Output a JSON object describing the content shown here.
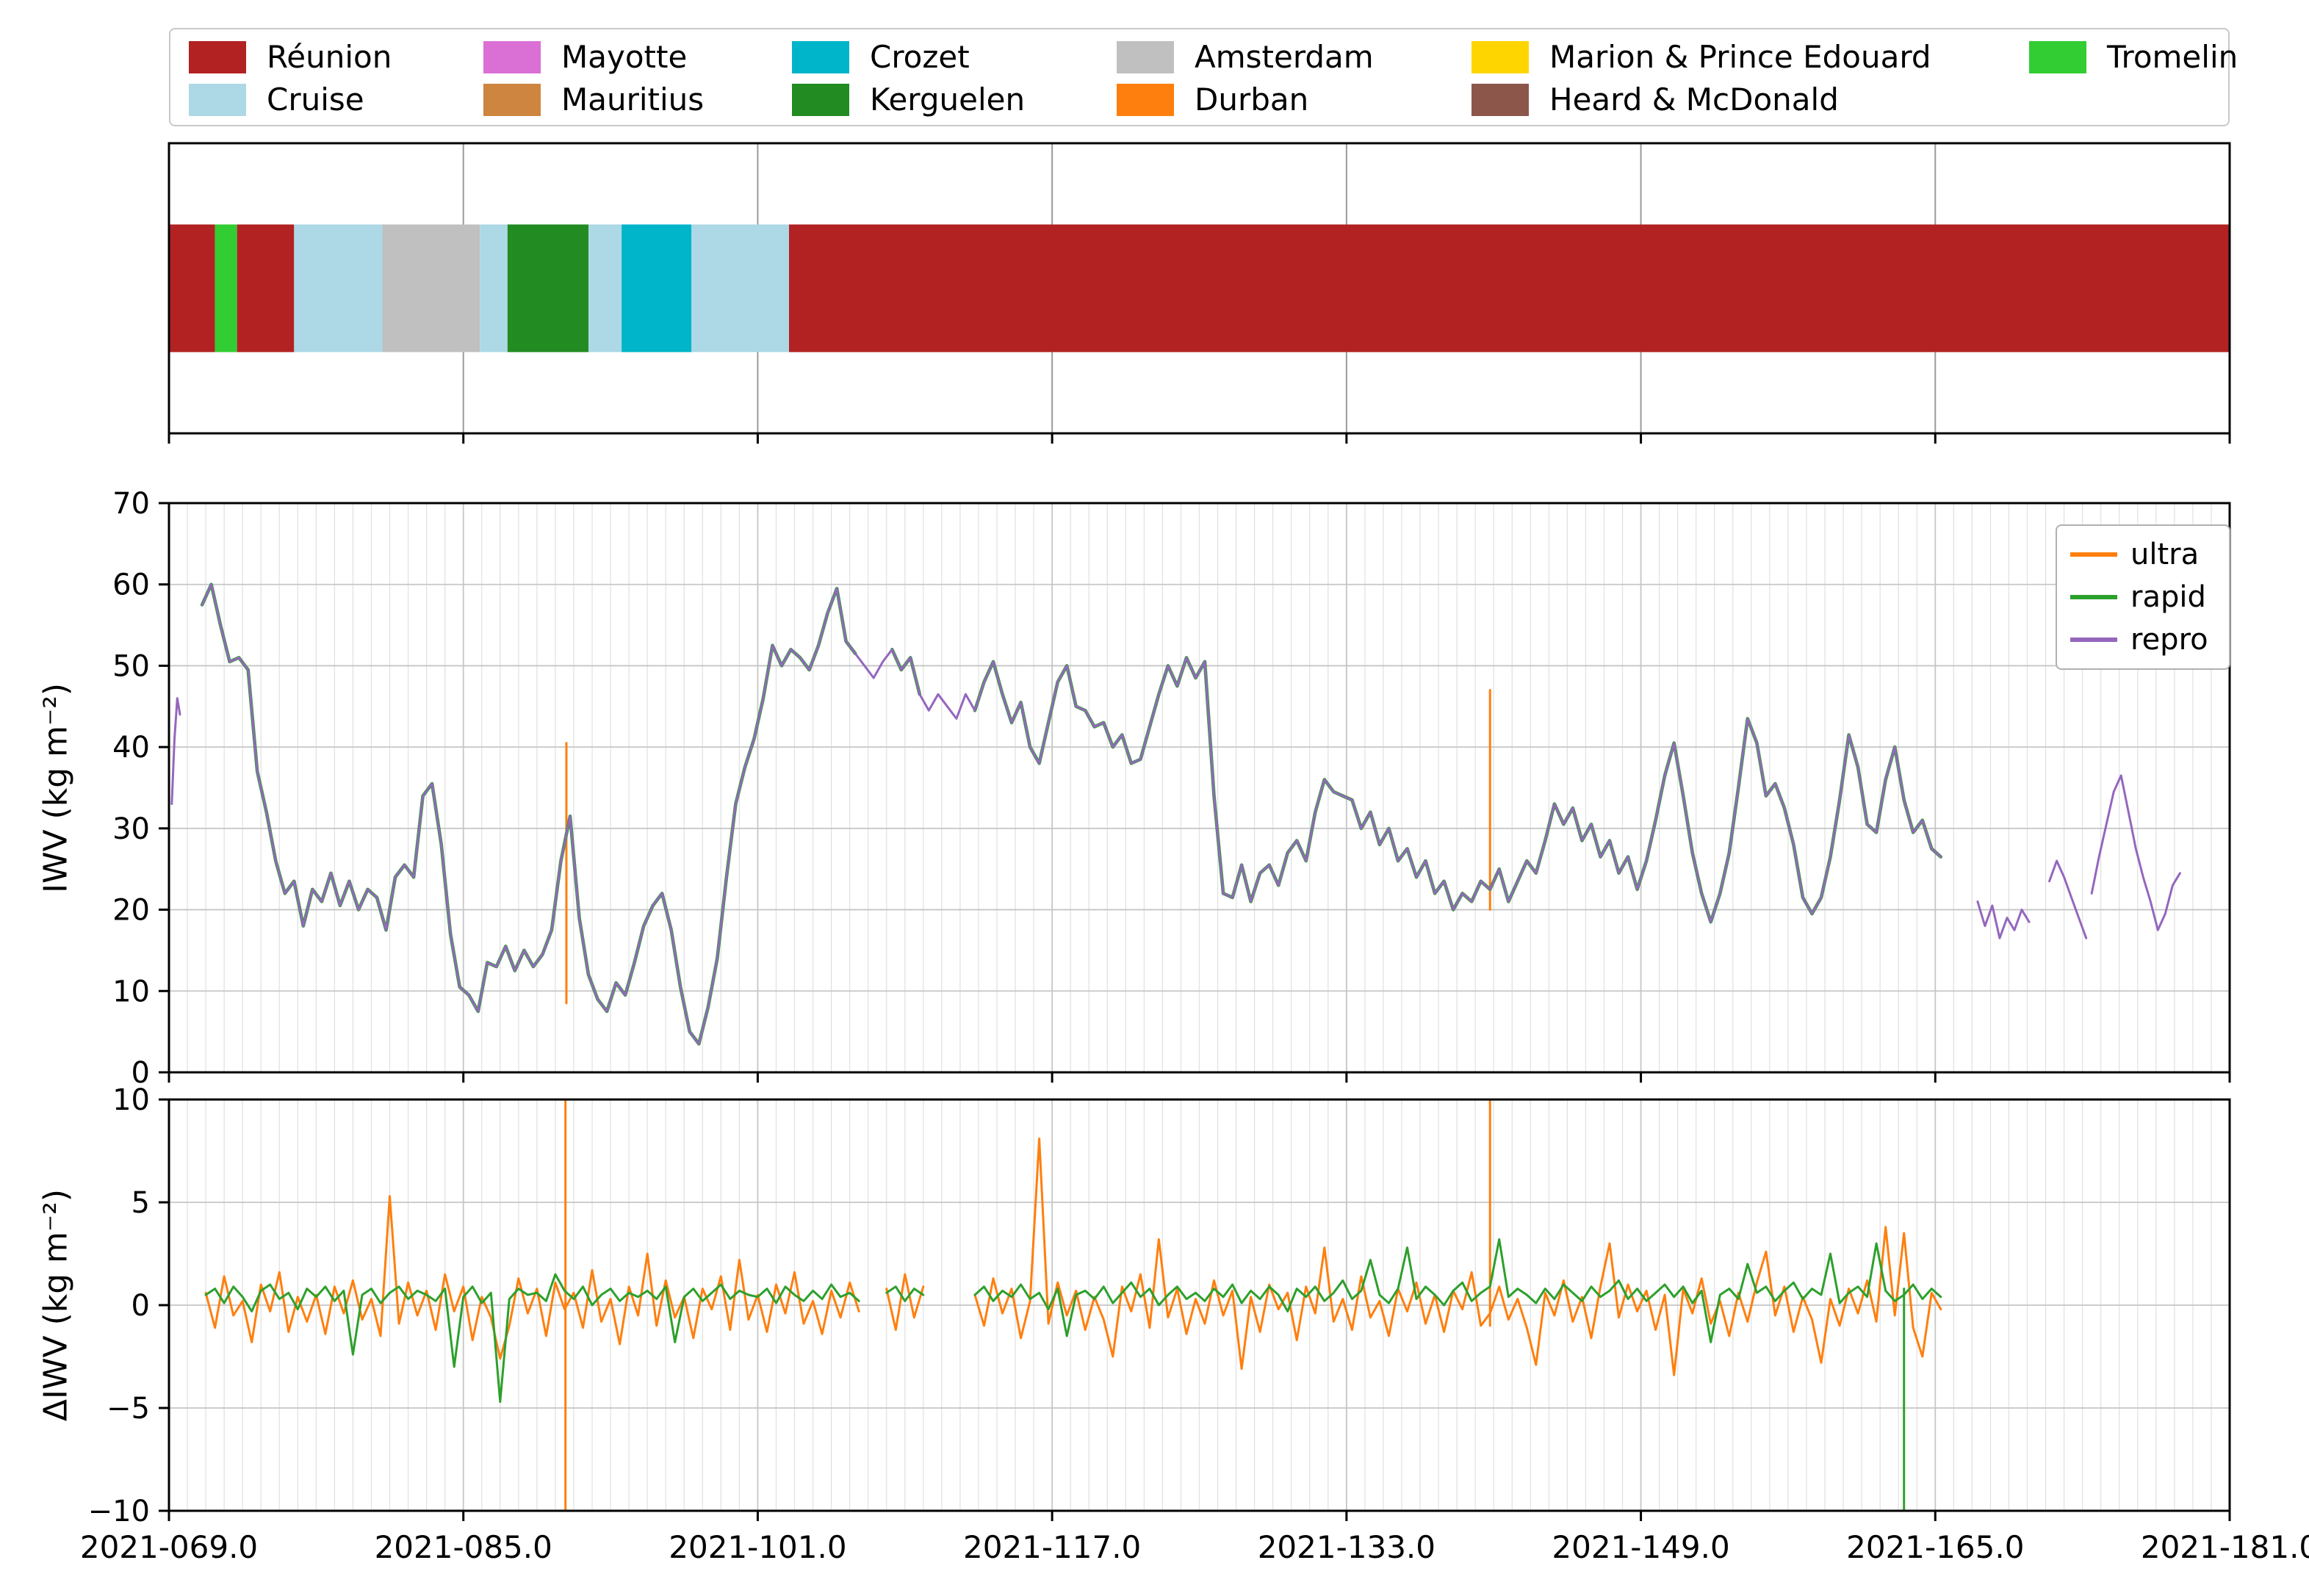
{
  "xaxis": {
    "lim": [
      69,
      181
    ],
    "ticks": [
      69,
      85,
      101,
      117,
      133,
      149,
      165,
      181
    ],
    "labels": [
      "2021-069.0",
      "2021-085.0",
      "2021-101.0",
      "2021-117.0",
      "2021-133.0",
      "2021-149.0",
      "2021-165.0",
      "2021-181.0"
    ],
    "minor_step": 1
  },
  "colors": {
    "reunion": "#b22222",
    "cruise": "#add8e6",
    "mayotte": "#da70d6",
    "mauritius": "#cd853f",
    "crozet": "#00b5c9",
    "kerguelen": "#228b22",
    "amsterdam": "#c0c0c0",
    "durban": "#ff7f0e",
    "marion": "#ffd500",
    "heard": "#8c564b",
    "tromelin": "#32cd32"
  },
  "location_legend": {
    "items": [
      {
        "label": "Réunion",
        "key": "reunion",
        "col": 1,
        "row": 1
      },
      {
        "label": "Cruise",
        "key": "cruise",
        "col": 1,
        "row": 2
      },
      {
        "label": "Mayotte",
        "key": "mayotte",
        "col": 2,
        "row": 1
      },
      {
        "label": "Mauritius",
        "key": "mauritius",
        "col": 2,
        "row": 2
      },
      {
        "label": "Crozet",
        "key": "crozet",
        "col": 3,
        "row": 1
      },
      {
        "label": "Kerguelen",
        "key": "kerguelen",
        "col": 3,
        "row": 2
      },
      {
        "label": "Amsterdam",
        "key": "amsterdam",
        "col": 4,
        "row": 1
      },
      {
        "label": "Durban",
        "key": "durban",
        "col": 4,
        "row": 2
      },
      {
        "label": "Marion & Prince Edouard",
        "key": "marion",
        "col": 5,
        "row": 1
      },
      {
        "label": "Heard & McDonald",
        "key": "heard",
        "col": 5,
        "row": 2
      },
      {
        "label": "Tromelin",
        "key": "tromelin",
        "col": 6,
        "row": 1
      }
    ]
  },
  "chart_data": [
    {
      "type": "timeline",
      "categories": [
        "Réunion",
        "Cruise",
        "Mayotte",
        "Mauritius",
        "Crozet",
        "Kerguelen",
        "Amsterdam",
        "Durban",
        "Marion & Prince Edouard",
        "Heard & McDonald",
        "Tromelin"
      ],
      "segments": [
        [
          69.0,
          71.5,
          "reunion"
        ],
        [
          71.5,
          72.7,
          "tromelin"
        ],
        [
          72.7,
          75.8,
          "reunion"
        ],
        [
          75.8,
          80.6,
          "cruise"
        ],
        [
          80.6,
          85.9,
          "amsterdam"
        ],
        [
          85.9,
          87.4,
          "cruise"
        ],
        [
          87.4,
          91.8,
          "kerguelen"
        ],
        [
          91.8,
          93.6,
          "cruise"
        ],
        [
          93.6,
          97.4,
          "crozet"
        ],
        [
          97.4,
          102.7,
          "cruise"
        ],
        [
          102.7,
          181.0,
          "reunion"
        ]
      ]
    },
    {
      "type": "line",
      "id": "iwv",
      "ylabel": "IWV (kg m⁻²)",
      "ylim": [
        0,
        70
      ],
      "yticks": [
        0,
        10,
        20,
        30,
        40,
        50,
        60,
        70
      ],
      "ytick_labels": [
        "0",
        "10",
        "20",
        "30",
        "40",
        "50",
        "60",
        "70"
      ],
      "legend_position": "upper right",
      "grid": true,
      "series": [
        {
          "name": "ultra",
          "color": "#ff7f0e",
          "width": 3,
          "base": "repro",
          "clip": [
            [
              70.8,
              106.5
            ],
            [
              108.0,
              110.0
            ],
            [
              112.8,
              165.4
            ]
          ],
          "spikes": [
            [
              90.6,
              8.5,
              40.5
            ],
            [
              140.8,
              20.0,
              47.0
            ]
          ]
        },
        {
          "name": "rapid",
          "color": "#2ca02c",
          "width": 4.6,
          "base": "repro",
          "clip": [
            [
              70.8,
              106.5
            ],
            [
              108.0,
              110.0
            ],
            [
              112.8,
              165.4
            ]
          ],
          "spikes": []
        },
        {
          "name": "repro",
          "color": "#9467bd",
          "width": 3,
          "spikes": [],
          "segments": [
            {
              "x0": 69.15,
              "dx": 0.15,
              "y": [
                33,
                41,
                46,
                44
              ]
            },
            {
              "x0": 70.8,
              "dx": 0.5,
              "y": [
                57.5,
                60,
                55,
                50.5,
                51,
                49.5,
                37,
                32,
                26,
                22,
                23.5,
                18,
                22.5,
                21,
                24.5,
                20.5,
                23.5,
                20,
                22.5,
                21.5,
                17.5,
                24,
                25.5,
                24,
                34,
                35.5,
                28,
                17,
                10.5,
                9.5,
                7.5,
                13.5,
                13,
                15.5,
                12.5,
                15,
                13,
                14.5,
                17.5,
                26,
                31.5,
                19,
                12,
                9,
                7.5,
                11,
                9.5,
                13.5,
                18,
                20.5,
                22,
                17.5,
                10.5,
                5,
                3.5,
                8,
                14,
                24,
                33,
                37.5,
                41,
                46,
                52.5,
                50,
                52,
                51,
                49.5,
                52.5,
                56.5,
                59.5,
                53,
                51.5,
                50,
                48.5,
                50.5,
                52,
                49.5,
                51,
                46.5,
                44.5,
                46.5,
                45,
                43.5,
                46.5,
                44.5,
                48,
                50.5,
                46.5,
                43,
                45.5,
                40,
                38,
                43,
                48,
                50,
                45,
                44.5,
                42.5,
                43,
                40,
                41.5,
                38,
                38.5,
                42.5,
                46.5,
                50,
                47.5,
                51,
                48.5,
                50.5,
                34,
                22,
                21.5,
                25.5,
                21,
                24.5,
                25.5,
                23,
                27,
                28.5,
                26,
                32,
                36,
                34.5,
                34,
                33.5,
                30,
                32,
                28,
                30,
                26,
                27.5,
                24,
                26,
                22,
                23.5,
                20,
                22,
                21,
                23.5,
                22.5,
                25,
                21,
                23.5,
                26,
                24.5,
                28.5,
                33,
                30.5,
                32.5,
                28.5,
                30.5,
                26.5,
                28.5,
                24.5,
                26.5,
                22.5,
                26,
                31,
                36.5,
                40.5,
                34,
                27,
                22,
                18.5,
                22,
                27,
                35,
                43.5,
                40.5,
                34,
                35.5,
                32.5,
                28,
                21.5,
                19.5,
                21.5,
                26.5,
                33.5,
                41.5,
                37.5,
                30.5,
                29.5,
                36,
                40,
                33.5,
                29.5,
                31,
                27.5,
                26.5
              ]
            },
            {
              "x0": 167.3,
              "dx": 0.4,
              "y": [
                21,
                18,
                20.5,
                16.5,
                19,
                17.5,
                20,
                18.5
              ]
            },
            {
              "x0": 171.2,
              "dx": 0.4,
              "y": [
                23.5,
                26,
                24,
                21.5,
                19,
                16.5
              ]
            },
            {
              "x0": 173.5,
              "dx": 0.4,
              "y": [
                22,
                26.5,
                30.5,
                34.5,
                36.5,
                32,
                27.5,
                24,
                21,
                17.5,
                19.5,
                23,
                24.5
              ]
            }
          ]
        }
      ]
    },
    {
      "type": "line",
      "id": "diwv",
      "ylabel": "ΔIWV (kg m⁻²)",
      "ylim": [
        -10,
        10
      ],
      "yticks": [
        -10,
        -5,
        0,
        5,
        10
      ],
      "ytick_labels": [
        "−10",
        "−5",
        "0",
        "5",
        "10"
      ],
      "grid": true,
      "series": [
        {
          "name": "ultra",
          "color": "#ff7f0e",
          "width": 3,
          "spikes": [
            [
              90.55,
              -10,
              10
            ],
            [
              140.8,
              -1.0,
              10
            ]
          ],
          "segments": [
            {
              "x0": 71.0,
              "dx": 0.5,
              "y": [
                0.6,
                -1.1,
                1.4,
                -0.5,
                0.2,
                -1.8,
                1.0,
                -0.3,
                1.6,
                -1.3,
                0.4,
                -0.8,
                0.5,
                -1.4,
                0.9,
                -0.4,
                1.2,
                -0.7,
                0.3,
                -1.5,
                5.3,
                -0.9,
                1.1,
                -0.5,
                0.7,
                -1.2,
                1.5,
                -0.3,
                0.9,
                -1.7,
                0.4,
                -0.6,
                -2.6,
                -1.0,
                1.3,
                -0.4,
                0.8,
                -1.5,
                1.1,
                -0.2,
                0.6,
                -1.1,
                1.7,
                -0.8,
                0.3,
                -1.9,
                0.9,
                -0.5,
                2.5,
                -1.0,
                1.2,
                -0.6,
                0.4,
                -1.6,
                0.8,
                -0.2,
                1.4,
                -1.2,
                2.2,
                -0.7,
                0.5,
                -1.3,
                1.0,
                -0.4,
                1.6,
                -0.9,
                0.2,
                -1.4,
                0.7,
                -0.6,
                1.1,
                -0.3
              ]
            },
            {
              "x0": 108.0,
              "dx": 0.5,
              "y": [
                0.8,
                -1.2,
                1.5,
                -0.6,
                0.9
              ]
            },
            {
              "x0": 112.8,
              "dx": 0.5,
              "y": [
                0.5,
                -1.0,
                1.3,
                -0.4,
                0.8,
                -1.6,
                0.2,
                8.1,
                -0.9,
                1.1,
                -0.5,
                0.7,
                -1.2,
                0.4,
                -0.7,
                -2.5,
                0.9,
                -0.3,
                1.5,
                -1.1,
                3.2,
                -0.6,
                0.8,
                -1.4,
                0.3,
                -0.9,
                1.2,
                -0.5,
                0.7,
                -3.1,
                0.4,
                -1.3,
                1.0,
                -0.2,
                0.6,
                -1.7,
                0.9,
                -0.4,
                2.8,
                -0.8,
                0.3,
                -1.2,
                1.4,
                -0.6,
                0.2,
                -1.5,
                0.8,
                -0.3,
                1.1,
                -0.9,
                0.5,
                -1.3,
                0.7,
                -0.2,
                1.6,
                -1.0,
                -0.4,
                0.9,
                -0.7,
                0.3,
                -1.1,
                -2.9,
                0.6,
                -0.5,
                1.2,
                -0.8,
                0.4,
                -1.6,
                0.9,
                3.0,
                -0.6,
                1.0,
                -0.3,
                0.7,
                -1.2,
                0.5,
                -3.4,
                0.8,
                -0.4,
                1.3,
                -0.9,
                0.2,
                -1.5,
                0.6,
                -0.8,
                1.1,
                2.6,
                -0.5,
                0.9,
                -1.3,
                0.4,
                -0.7,
                -2.8,
                0.3,
                -1.0,
                0.8,
                -0.4,
                1.2,
                -0.8,
                3.8,
                -0.5,
                3.5,
                -1.1,
                -2.5,
                0.6,
                -0.2
              ]
            }
          ]
        },
        {
          "name": "rapid",
          "color": "#2ca02c",
          "width": 3,
          "spikes": [
            [
              163.3,
              -10,
              0.8
            ]
          ],
          "segments": [
            {
              "x0": 71.0,
              "dx": 0.5,
              "y": [
                0.5,
                0.8,
                0.1,
                0.9,
                0.4,
                -0.3,
                0.7,
                1.0,
                0.3,
                0.6,
                -0.2,
                0.8,
                0.4,
                0.9,
                0.2,
                0.7,
                -2.4,
                0.5,
                0.8,
                0.1,
                0.6,
                0.9,
                0.3,
                0.7,
                0.5,
                0.2,
                0.8,
                -3.0,
                0.4,
                0.9,
                0.1,
                0.6,
                -4.7,
                0.3,
                0.8,
                0.5,
                0.6,
                0.2,
                1.5,
                0.7,
                0.3,
                0.9,
                0.0,
                0.5,
                0.8,
                0.2,
                0.6,
                0.4,
                0.7,
                0.3,
                0.9,
                -1.8,
                0.4,
                0.8,
                0.2,
                0.6,
                1.0,
                0.3,
                0.7,
                0.5,
                0.4,
                0.8,
                0.1,
                0.9,
                0.5,
                0.2,
                0.7,
                0.3,
                1.0,
                0.4,
                0.6,
                0.2
              ]
            },
            {
              "x0": 108.0,
              "dx": 0.5,
              "y": [
                0.6,
                0.9,
                0.2,
                0.8,
                0.5
              ]
            },
            {
              "x0": 112.8,
              "dx": 0.5,
              "y": [
                0.5,
                0.9,
                0.2,
                0.7,
                0.4,
                1.0,
                0.3,
                0.6,
                -0.2,
                0.8,
                -1.5,
                0.5,
                0.7,
                0.3,
                0.9,
                0.1,
                0.6,
                1.1,
                0.4,
                0.8,
                0.0,
                0.5,
                0.9,
                0.3,
                0.6,
                0.2,
                0.8,
                0.4,
                1.0,
                0.1,
                0.7,
                0.3,
                0.9,
                0.5,
                -0.3,
                0.8,
                0.4,
                0.9,
                0.2,
                0.6,
                1.2,
                0.3,
                0.7,
                2.2,
                0.5,
                0.1,
                0.8,
                2.8,
                0.3,
                0.9,
                0.5,
                0.0,
                0.7,
                1.1,
                0.2,
                0.6,
                0.9,
                3.2,
                0.4,
                0.8,
                0.5,
                0.1,
                0.8,
                0.3,
                1.0,
                0.6,
                0.2,
                0.9,
                0.4,
                0.7,
                1.2,
                0.3,
                0.8,
                0.2,
                0.6,
                1.0,
                0.4,
                0.9,
                0.1,
                0.7,
                -1.8,
                0.5,
                0.8,
                0.3,
                2.0,
                0.6,
                0.9,
                0.2,
                0.7,
                1.1,
                0.3,
                0.8,
                0.5,
                2.5,
                0.1,
                0.6,
                0.9,
                0.4,
                3.0,
                0.7,
                0.2,
                0.5,
                1.0,
                0.3,
                0.8,
                0.4
              ]
            }
          ]
        }
      ]
    }
  ]
}
